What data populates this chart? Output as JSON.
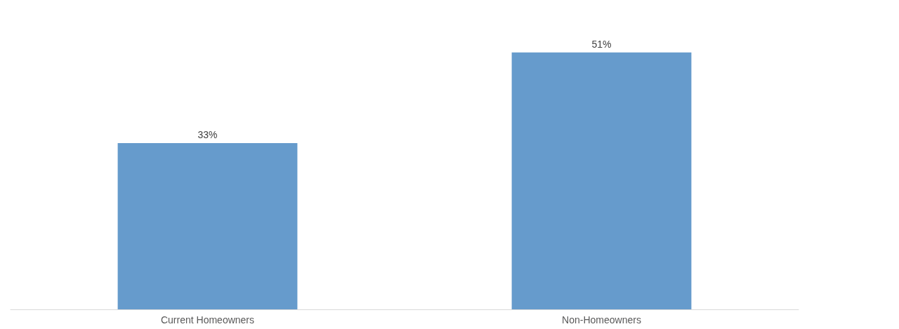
{
  "chart_data": {
    "type": "bar",
    "categories": [
      "Current Homeowners",
      "Non-Homeowners"
    ],
    "values": [
      33,
      51
    ],
    "value_labels": [
      "33%",
      "51%"
    ],
    "color": "#669bcc"
  }
}
